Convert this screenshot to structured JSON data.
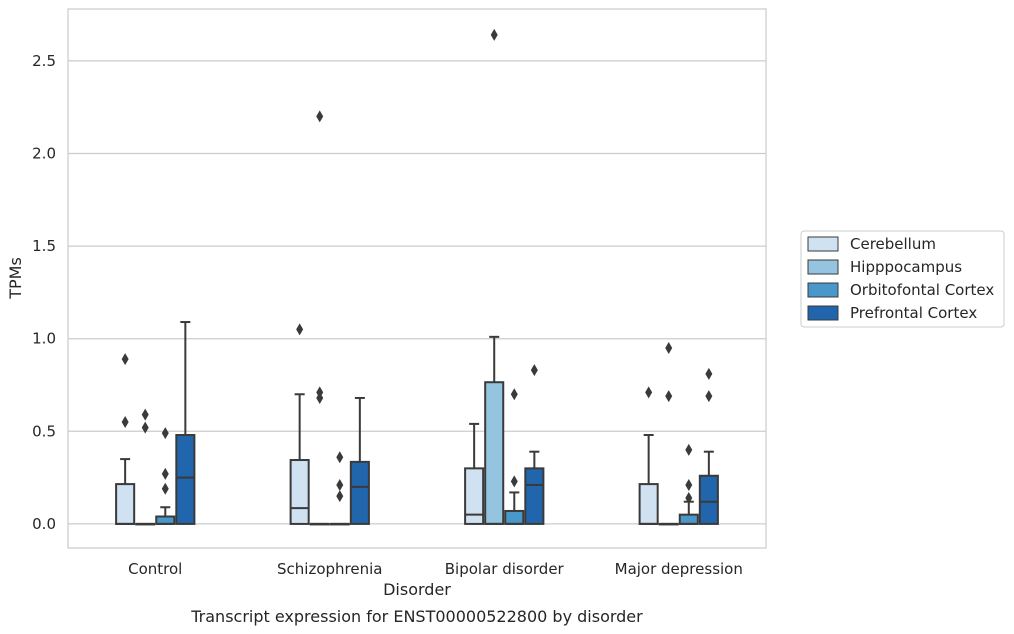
{
  "chart_data": {
    "type": "box",
    "xlabel": "Disorder",
    "ylabel": "TPMs",
    "caption": "Transcript expression for ENST00000522800 by disorder",
    "ylim": [
      -0.13,
      2.78
    ],
    "yticks": [
      0.0,
      0.5,
      1.0,
      1.5,
      2.0,
      2.5
    ],
    "ytick_labels": [
      "0.0",
      "0.5",
      "1.0",
      "1.5",
      "2.0",
      "2.5"
    ],
    "grid": true,
    "legend_position": "right",
    "categories": [
      "Control",
      "Schizophrenia",
      "Bipolar disorder",
      "Major depression"
    ],
    "series": [
      {
        "name": "Cerebellum",
        "color": "#d0e1f2",
        "boxes": [
          {
            "whislo": 0.0,
            "q1": 0.0,
            "med": 0.0,
            "q3": 0.215,
            "whishi": 0.35,
            "fliers": [
              0.55,
              0.89
            ]
          },
          {
            "whislo": 0.0,
            "q1": 0.0,
            "med": 0.085,
            "q3": 0.345,
            "whishi": 0.7,
            "fliers": [
              1.05
            ]
          },
          {
            "whislo": 0.0,
            "q1": 0.0,
            "med": 0.05,
            "q3": 0.3,
            "whishi": 0.54,
            "fliers": []
          },
          {
            "whislo": 0.0,
            "q1": 0.0,
            "med": 0.0,
            "q3": 0.215,
            "whishi": 0.48,
            "fliers": [
              0.71
            ]
          }
        ]
      },
      {
        "name": "Hipppocampus",
        "color": "#94c4df",
        "boxes": [
          {
            "whislo": 0.0,
            "q1": 0.0,
            "med": 0.0,
            "q3": 0.0,
            "whishi": 0.0,
            "fliers": [
              0.52,
              0.59
            ]
          },
          {
            "whislo": 0.0,
            "q1": 0.0,
            "med": 0.0,
            "q3": 0.0,
            "whishi": 0.0,
            "fliers": [
              0.68,
              0.71,
              2.2
            ]
          },
          {
            "whislo": 0.0,
            "q1": 0.0,
            "med": 0.0,
            "q3": 0.765,
            "whishi": 1.01,
            "fliers": [
              2.64
            ]
          },
          {
            "whislo": 0.0,
            "q1": 0.0,
            "med": 0.0,
            "q3": 0.0,
            "whishi": 0.0,
            "fliers": [
              0.69,
              0.95
            ]
          }
        ]
      },
      {
        "name": "Orbitofontal Cortex",
        "color": "#4a98c9",
        "boxes": [
          {
            "whislo": 0.0,
            "q1": 0.0,
            "med": 0.0,
            "q3": 0.04,
            "whishi": 0.09,
            "fliers": [
              0.19,
              0.27,
              0.49
            ]
          },
          {
            "whislo": 0.0,
            "q1": 0.0,
            "med": 0.0,
            "q3": 0.0,
            "whishi": 0.0,
            "fliers": [
              0.15,
              0.21,
              0.36
            ]
          },
          {
            "whislo": 0.0,
            "q1": 0.0,
            "med": 0.0,
            "q3": 0.07,
            "whishi": 0.17,
            "fliers": [
              0.23,
              0.7
            ]
          },
          {
            "whislo": 0.0,
            "q1": 0.0,
            "med": 0.0,
            "q3": 0.05,
            "whishi": 0.12,
            "fliers": [
              0.14,
              0.21,
              0.4
            ]
          }
        ]
      },
      {
        "name": "Prefrontal Cortex",
        "color": "#2166ac",
        "boxes": [
          {
            "whislo": 0.0,
            "q1": 0.0,
            "med": 0.25,
            "q3": 0.48,
            "whishi": 1.09,
            "fliers": []
          },
          {
            "whislo": 0.0,
            "q1": 0.0,
            "med": 0.2,
            "q3": 0.335,
            "whishi": 0.68,
            "fliers": []
          },
          {
            "whislo": 0.0,
            "q1": 0.0,
            "med": 0.21,
            "q3": 0.3,
            "whishi": 0.39,
            "fliers": [
              0.83
            ]
          },
          {
            "whislo": 0.0,
            "q1": 0.0,
            "med": 0.12,
            "q3": 0.26,
            "whishi": 0.39,
            "fliers": [
              0.69,
              0.81
            ]
          }
        ]
      }
    ]
  }
}
